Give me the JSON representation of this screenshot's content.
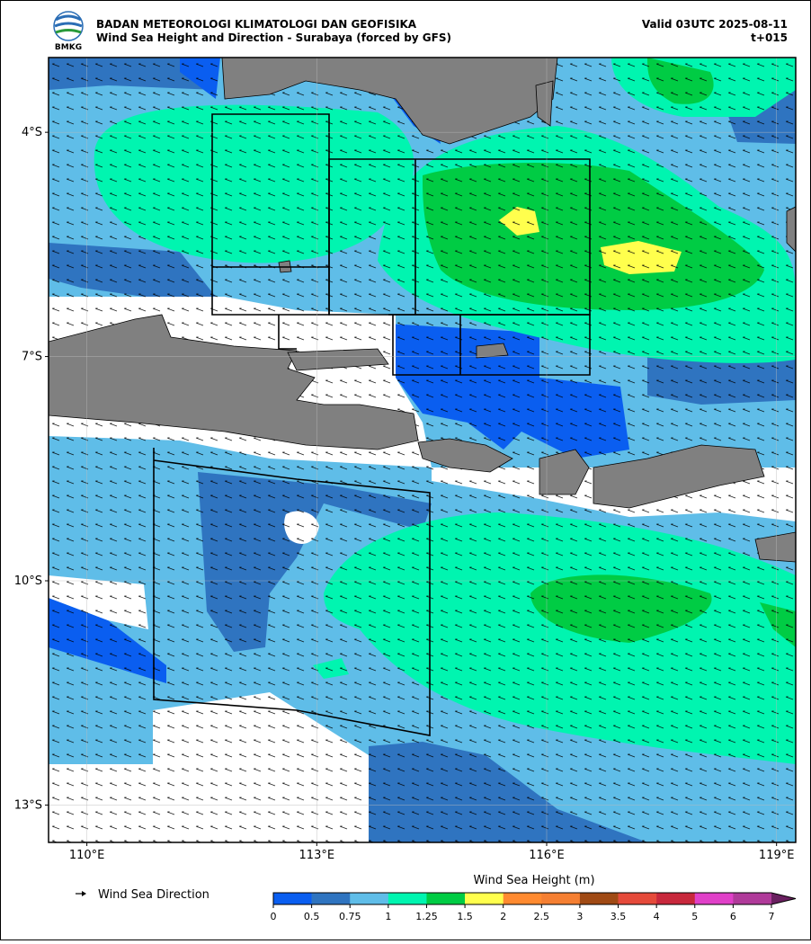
{
  "header": {
    "agency": "BADAN METEOROLOGI KLIMATOLOGI DAN GEOFISIKA",
    "title": "Wind Sea Height and Direction - Surabaya (forced by GFS)",
    "valid": "Valid 03UTC 2025-08-11",
    "lead": "t+015",
    "logo_text": "BMKG"
  },
  "map": {
    "xlim": [
      109.5,
      119.25
    ],
    "ylim": [
      -13.5,
      -3
    ],
    "xticks": [
      {
        "value": 110,
        "label": "110°E"
      },
      {
        "value": 113,
        "label": "113°E"
      },
      {
        "value": 116,
        "label": "116°E"
      },
      {
        "value": 119,
        "label": "119°E"
      }
    ],
    "yticks": [
      {
        "value": -4,
        "label": "4°S"
      },
      {
        "value": -7,
        "label": "7°S"
      },
      {
        "value": -10,
        "label": "10°S"
      },
      {
        "value": -13,
        "label": "13°S"
      }
    ],
    "grid": true
  },
  "legend": {
    "arrow_label": "Wind Sea Direction"
  },
  "colorbar": {
    "label": "Wind Sea Height (m)",
    "ticks": [
      0,
      0.5,
      0.75,
      1,
      1.25,
      1.5,
      2,
      2.5,
      3,
      3.5,
      4,
      5,
      6,
      7
    ],
    "colors": [
      "#0a5ef0",
      "#2f74c0",
      "#5fbde8",
      "#00f5b0",
      "#00cc44",
      "#ffff4d",
      "#ff8a30",
      "#f57f32",
      "#a04a14",
      "#e54a3a",
      "#c8283c",
      "#e040c8",
      "#b03a9a"
    ],
    "extend_color": "#6a2060"
  }
}
